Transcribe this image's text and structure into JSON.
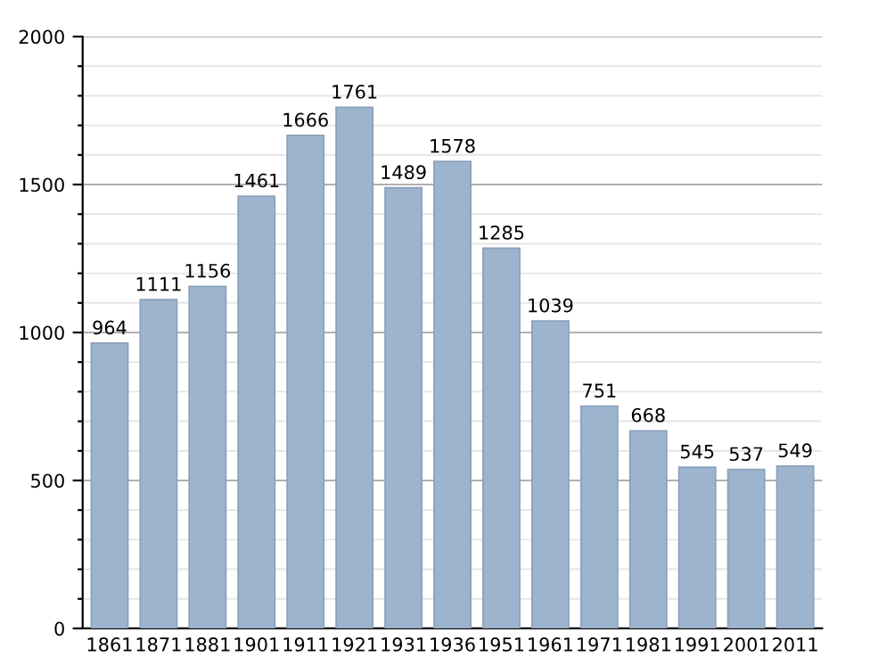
{
  "chart_data": {
    "type": "bar",
    "categories": [
      "1861",
      "1871",
      "1881",
      "1901",
      "1911",
      "1921",
      "1931",
      "1936",
      "1951",
      "1961",
      "1971",
      "1981",
      "1991",
      "2001",
      "2011"
    ],
    "values": [
      964,
      1111,
      1156,
      1461,
      1666,
      1761,
      1489,
      1578,
      1285,
      1039,
      751,
      668,
      545,
      537,
      549
    ],
    "color": "#9db4cf",
    "ylim": [
      0,
      2000
    ],
    "yticks": [
      0,
      {
        "value": 100,
        "label": null
      },
      {
        "value": 200,
        "label": null
      },
      {
        "value": 300,
        "label": null
      },
      {
        "value": 400,
        "label": null
      },
      500,
      {
        "value": 600,
        "label": null
      },
      {
        "value": 700,
        "label": null
      },
      {
        "value": 800,
        "label": null
      },
      {
        "value": 900,
        "label": null
      },
      1000,
      {
        "value": 1100,
        "label": null
      },
      {
        "value": 1200,
        "label": null
      },
      {
        "value": 1300,
        "label": null
      },
      {
        "value": 1400,
        "label": null
      },
      1500,
      {
        "value": 1600,
        "label": null
      },
      {
        "value": 1700,
        "label": null
      },
      {
        "value": 1800,
        "label": null
      },
      {
        "value": 1900,
        "label": null
      },
      2000
    ],
    "grid": "y",
    "data_labels": true
  }
}
